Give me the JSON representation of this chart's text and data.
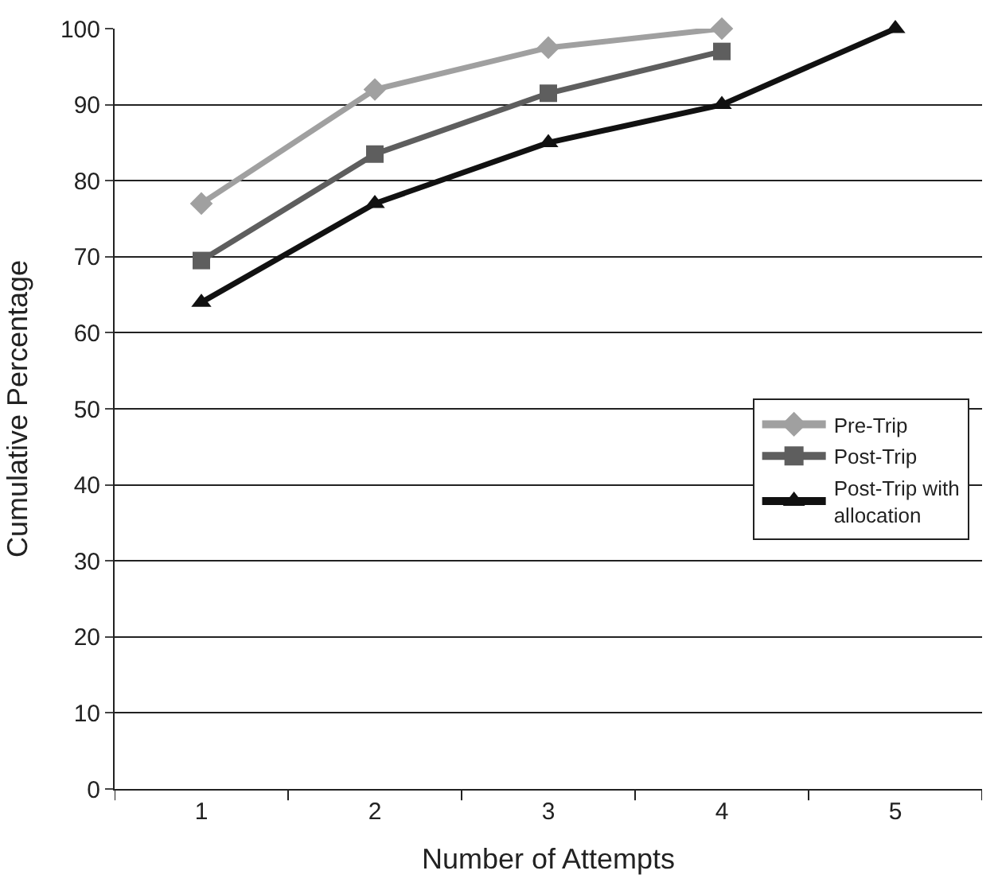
{
  "chart_data": {
    "type": "line",
    "xlabel": "Number of Attempts",
    "ylabel": "Cumulative Percentage",
    "categories": [
      "1",
      "2",
      "3",
      "4",
      "5"
    ],
    "ylim": [
      0,
      100
    ],
    "yticks": [
      0,
      10,
      20,
      30,
      40,
      50,
      60,
      70,
      80,
      90,
      100
    ],
    "grid": "y",
    "legend": "right",
    "line_style": "solid",
    "series": [
      {
        "name": "Pre-Trip",
        "color": "#a0a0a0",
        "marker": "diamond",
        "values": [
          77,
          92,
          97.5,
          100,
          null
        ]
      },
      {
        "name": "Post-Trip",
        "color": "#5e5e5e",
        "marker": "square",
        "values": [
          69.5,
          83.5,
          91.5,
          97,
          null
        ]
      },
      {
        "name": "Post-Trip with allocation",
        "color": "#111111",
        "marker": "triangle",
        "values": [
          64,
          77,
          85,
          90,
          100
        ]
      }
    ]
  }
}
